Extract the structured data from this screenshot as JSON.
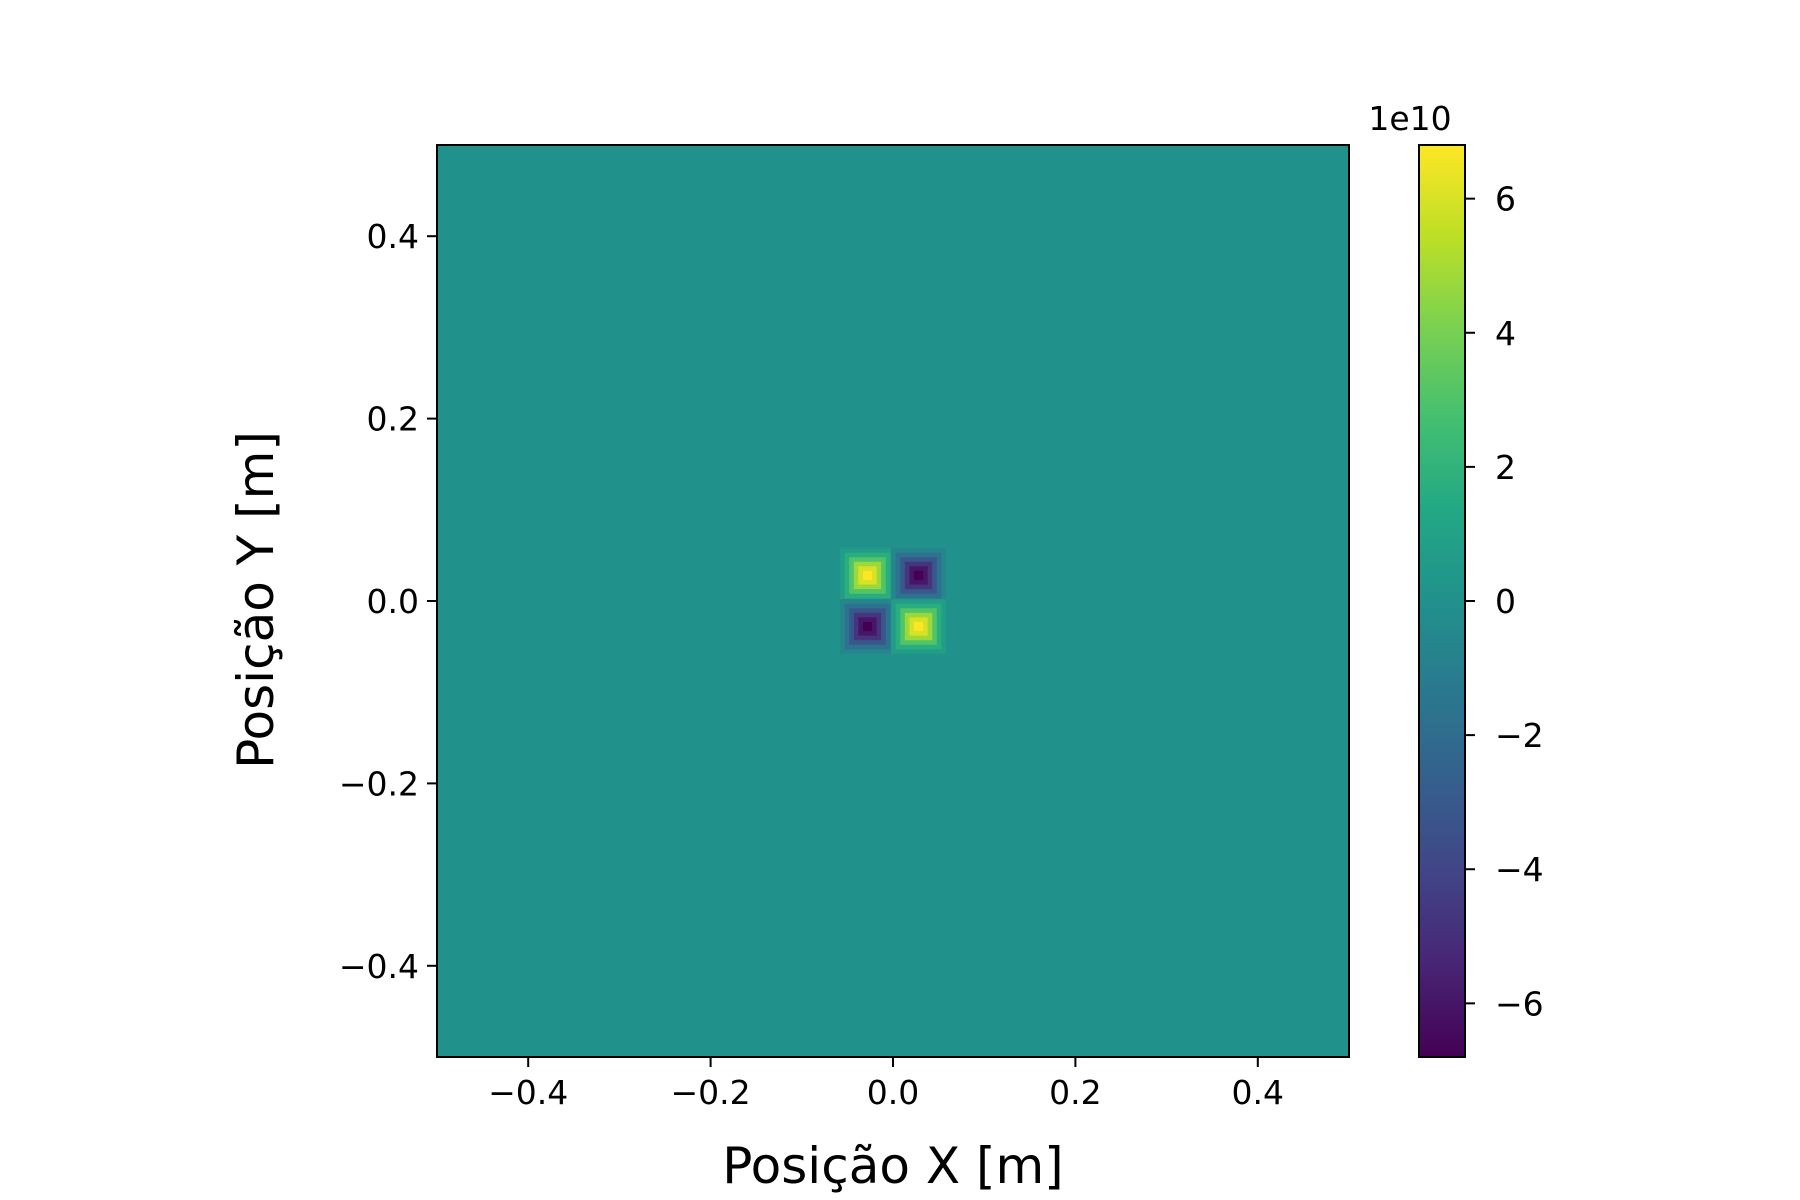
{
  "chart_data": {
    "type": "heatmap",
    "title": "",
    "xlabel": "Posição X [m]",
    "ylabel": "Posição Y [m]",
    "xlim": [
      -0.5,
      0.5
    ],
    "ylim": [
      -0.5,
      0.5
    ],
    "xticks": [
      -0.4,
      -0.2,
      0.0,
      0.2,
      0.4
    ],
    "xtick_labels": [
      "−0.4",
      "−0.2",
      "0.0",
      "0.2",
      "0.4"
    ],
    "yticks": [
      -0.4,
      -0.2,
      0.0,
      0.2,
      0.4
    ],
    "ytick_labels": [
      "−0.4",
      "−0.2",
      "0.0",
      "0.2",
      "0.4"
    ],
    "colormap": "viridis",
    "background_value": 0,
    "colorbar": {
      "range": [
        -6.8,
        6.8
      ],
      "multiplier_label": "1e10",
      "ticks": [
        -6,
        -4,
        -2,
        0,
        2,
        4,
        6
      ],
      "tick_labels": [
        "−6",
        "−4",
        "−2",
        "0",
        "2",
        "4",
        "6"
      ]
    },
    "features": [
      {
        "x": -0.028,
        "y": 0.028,
        "value": 6.8
      },
      {
        "x": 0.028,
        "y": 0.028,
        "value": -6.8
      },
      {
        "x": -0.028,
        "y": -0.028,
        "value": -6.8
      },
      {
        "x": 0.028,
        "y": -0.028,
        "value": 6.8
      }
    ],
    "grid": false,
    "legend": "none"
  }
}
